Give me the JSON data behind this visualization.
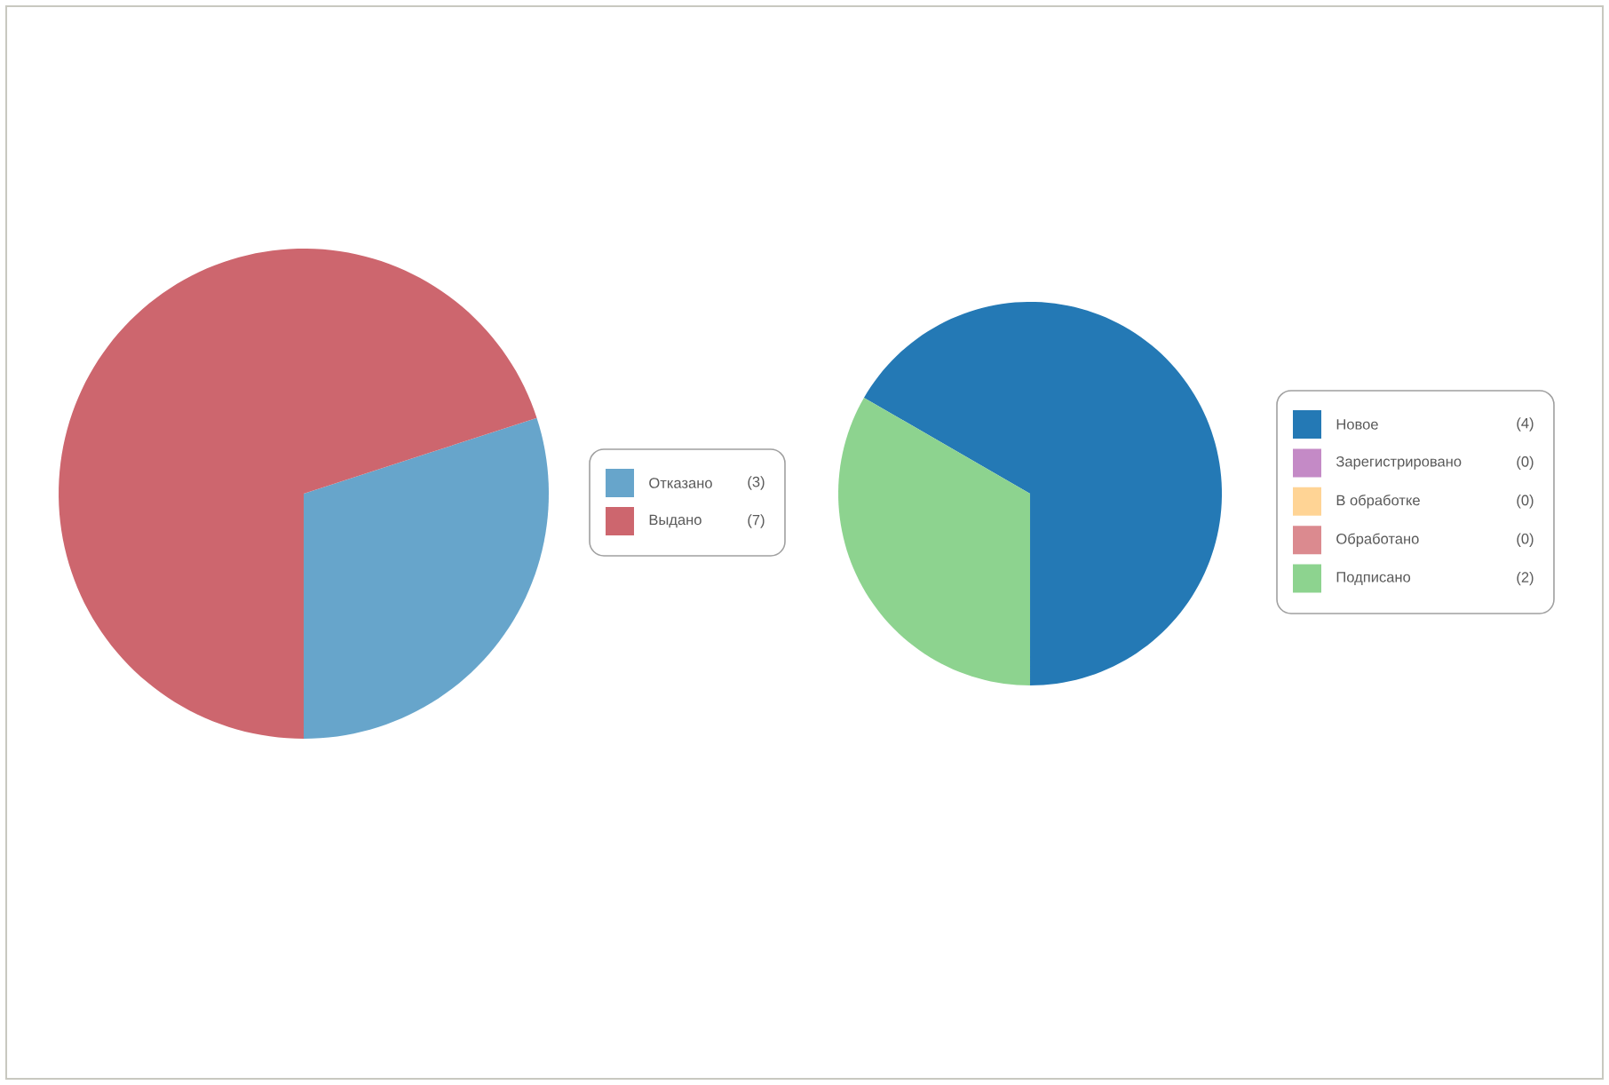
{
  "chart_data": [
    {
      "type": "pie",
      "categories": [
        "Отказано",
        "Выдано"
      ],
      "values": [
        3,
        7
      ],
      "colors": [
        "#67a5cb",
        "#cd666e"
      ],
      "value_labels": [
        "(3)",
        "(7)"
      ],
      "legend": "right"
    },
    {
      "type": "pie",
      "categories": [
        "Новое",
        "Зарегистрировано",
        "В обработке",
        "Обработано",
        "Подписано"
      ],
      "values": [
        4,
        0,
        0,
        0,
        2
      ],
      "colors": [
        "#2479b5",
        "#c48ac6",
        "#ffd495",
        "#db8a8f",
        "#8dd38f"
      ],
      "value_labels": [
        "(4)",
        "(0)",
        "(0)",
        "(0)",
        "(2)"
      ],
      "legend": "right"
    }
  ]
}
